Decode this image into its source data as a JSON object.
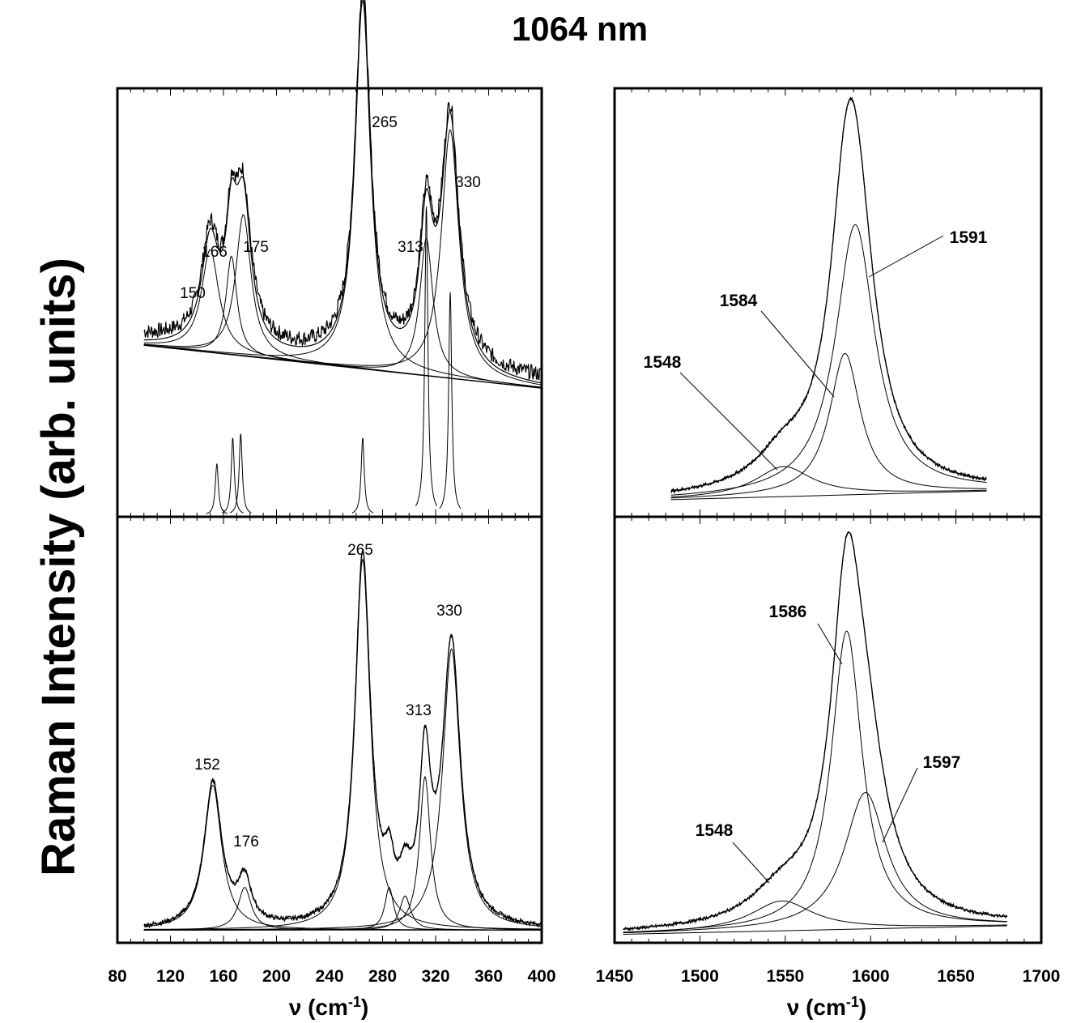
{
  "figure": {
    "title": "1064 nm",
    "ylabel": "Raman Intensity (arb. units)",
    "xlabel_main": "ν (cm",
    "xlabel_sup": "-1",
    "xlabel_end": ")"
  },
  "chart_data": [
    {
      "type": "line",
      "panel": "top-left",
      "xlim": [
        80,
        400
      ],
      "x_ticks": [
        80,
        120,
        160,
        200,
        240,
        280,
        320,
        360,
        400
      ],
      "baseline": {
        "x": [
          100,
          400
        ],
        "y": [
          0.4,
          0.3
        ]
      },
      "peaks": [
        {
          "label": "150",
          "center": 150,
          "width": 8,
          "height": 0.24
        },
        {
          "label": "166",
          "center": 166,
          "width": 5,
          "height": 0.23
        },
        {
          "label": "175",
          "center": 175,
          "width": 7,
          "height": 0.33
        },
        {
          "label": "265",
          "center": 265,
          "width": 7,
          "height": 0.86
        },
        {
          "label": "313",
          "center": 313,
          "width": 6,
          "height": 0.32
        },
        {
          "label": "330",
          "center": 331,
          "width": 8,
          "height": 0.58
        }
      ],
      "highlight_component": 330,
      "highlight_color": "#b52828",
      "sticks": [
        {
          "center": 155,
          "height": 0.12
        },
        {
          "center": 167,
          "height": 0.18
        },
        {
          "center": 173,
          "height": 0.19
        },
        {
          "center": 265,
          "height": 0.18
        },
        {
          "center": 313,
          "height": 0.72
        },
        {
          "center": 331,
          "height": 0.52
        }
      ]
    },
    {
      "type": "line",
      "panel": "bottom-left",
      "xlim": [
        80,
        400
      ],
      "x_ticks": [
        80,
        120,
        160,
        200,
        240,
        280,
        320,
        360,
        400
      ],
      "baseline": {
        "x": [
          100,
          400
        ],
        "y": [
          0.03,
          0.03
        ]
      },
      "peaks": [
        {
          "label": "152",
          "center": 152,
          "width": 8,
          "height": 0.34
        },
        {
          "label": "176",
          "center": 176,
          "width": 6,
          "height": 0.1
        },
        {
          "label": "265",
          "center": 265,
          "width": 7,
          "height": 0.87
        },
        {
          "label": "",
          "center": 285,
          "width": 4,
          "height": 0.1
        },
        {
          "label": "",
          "center": 297,
          "width": 5,
          "height": 0.08
        },
        {
          "label": "313",
          "center": 312,
          "width": 5,
          "height": 0.36
        },
        {
          "label": "330",
          "center": 332,
          "width": 8,
          "height": 0.66
        }
      ]
    },
    {
      "type": "line",
      "panel": "top-right",
      "xlim": [
        1450,
        1700
      ],
      "x_ticks": [
        1450,
        1500,
        1550,
        1600,
        1650,
        1700
      ],
      "baseline": {
        "x": [
          1483,
          1668
        ],
        "y": [
          0.04,
          0.06
        ]
      },
      "peaks": [
        {
          "label": "1548",
          "center": 1549,
          "width": 20,
          "height": 0.07
        },
        {
          "label": "1584",
          "center": 1585,
          "width": 11,
          "height": 0.33
        },
        {
          "label": "1591",
          "center": 1591,
          "width": 14,
          "height": 0.63
        }
      ]
    },
    {
      "type": "line",
      "panel": "bottom-right",
      "xlim": [
        1450,
        1700
      ],
      "x_ticks": [
        1450,
        1500,
        1550,
        1600,
        1650,
        1700
      ],
      "baseline": {
        "x": [
          1455,
          1680
        ],
        "y": [
          0.02,
          0.04
        ]
      },
      "peaks": [
        {
          "label": "1548",
          "center": 1548,
          "width": 22,
          "height": 0.07
        },
        {
          "label": "1586",
          "center": 1586,
          "width": 11,
          "height": 0.7
        },
        {
          "label": "1597",
          "center": 1597,
          "width": 15,
          "height": 0.32
        }
      ]
    }
  ]
}
